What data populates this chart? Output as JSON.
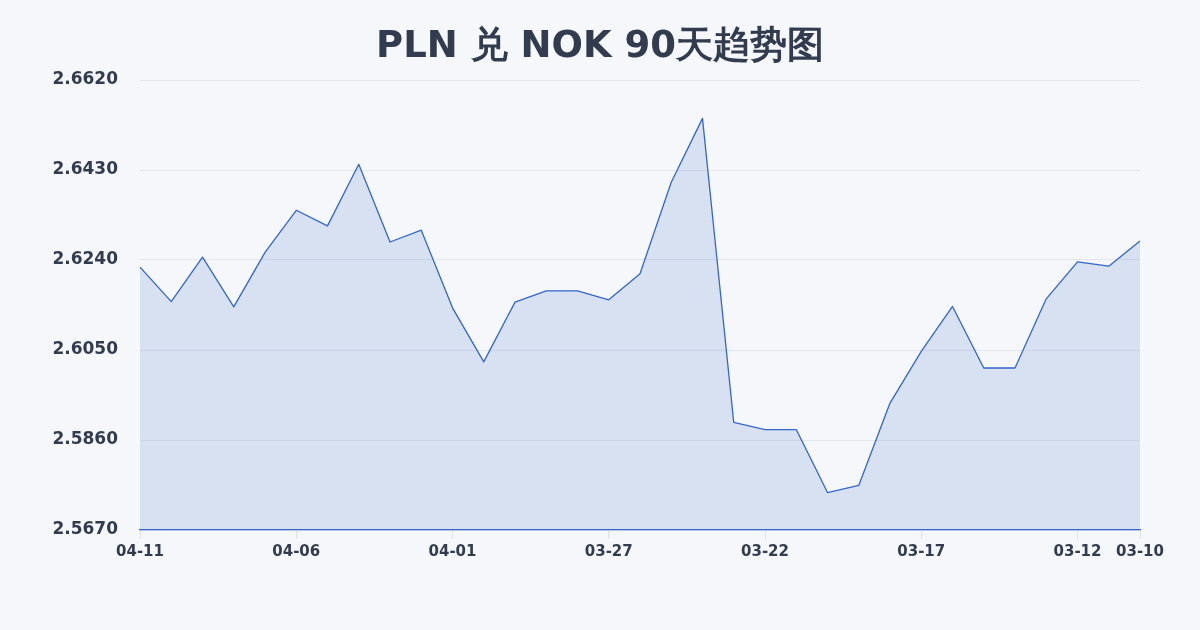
{
  "chart_data": {
    "type": "area",
    "title": "PLN 兑 NOK 90天趋势图",
    "categories": [
      "04-11",
      null,
      null,
      null,
      null,
      "04-06",
      null,
      null,
      null,
      null,
      "04-01",
      null,
      null,
      null,
      null,
      "03-27",
      null,
      null,
      null,
      null,
      "03-22",
      null,
      null,
      null,
      null,
      "03-17",
      null,
      null,
      null,
      null,
      "03-12",
      null,
      "03-10"
    ],
    "series": [
      {
        "color": "#3366cc",
        "values": [
          2.6225,
          2.6152,
          2.6246,
          2.6141,
          2.6256,
          2.6345,
          2.6312,
          2.6442,
          2.6278,
          2.6303,
          2.6139,
          2.6025,
          2.6151,
          2.6175,
          2.6175,
          2.6156,
          2.6211,
          2.6404,
          2.6539,
          2.5897,
          2.5882,
          2.5882,
          2.5749,
          2.5764,
          2.5938,
          2.6047,
          2.6142,
          2.6012,
          2.6012,
          2.6158,
          2.6236,
          2.6227,
          2.628
        ]
      }
    ],
    "ylim": [
      2.567,
      2.662
    ],
    "yticks": [
      {
        "value": 2.567,
        "label": "2.5670"
      },
      {
        "value": 2.586,
        "label": "2.5860"
      },
      {
        "value": 2.605,
        "label": "2.6050"
      },
      {
        "value": 2.624,
        "label": "2.6240"
      },
      {
        "value": 2.643,
        "label": "2.6430"
      },
      {
        "value": 2.662,
        "label": "2.6620"
      }
    ],
    "grid": "y"
  }
}
